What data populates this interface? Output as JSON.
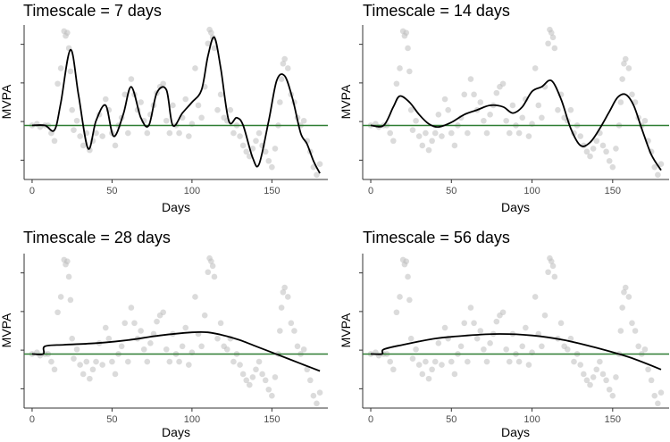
{
  "chart_data": [
    {
      "type": "line",
      "title": "Timescale = 7 days",
      "xlabel": "Days",
      "ylabel": "MVPA",
      "xlim": [
        -5,
        185
      ],
      "ylim": [
        0,
        1
      ],
      "x_ticks": [
        0,
        50,
        100,
        150
      ],
      "y_tick_count": 4,
      "reference_line_y": 0.35,
      "reference_color": "#2e7d32",
      "curve_color": "#000000",
      "point_color": "#bdbdbd",
      "curve": {
        "x": [
          0,
          8,
          14,
          18,
          24,
          29,
          35,
          40,
          46,
          51,
          57,
          62,
          68,
          73,
          78,
          84,
          88,
          94,
          100,
          106,
          110,
          114,
          118,
          123,
          128,
          132,
          138,
          142,
          148,
          153,
          158,
          163,
          168,
          172,
          176,
          180
        ],
        "y": [
          0.35,
          0.35,
          0.32,
          0.5,
          0.84,
          0.55,
          0.2,
          0.38,
          0.48,
          0.28,
          0.42,
          0.6,
          0.4,
          0.35,
          0.56,
          0.58,
          0.35,
          0.43,
          0.5,
          0.58,
          0.8,
          0.92,
          0.72,
          0.38,
          0.4,
          0.35,
          0.14,
          0.1,
          0.38,
          0.64,
          0.67,
          0.52,
          0.3,
          0.23,
          0.12,
          0.04
        ]
      }
    },
    {
      "type": "line",
      "title": "Timescale = 14 days",
      "xlabel": "Days",
      "ylabel": "MVPA",
      "xlim": [
        -5,
        185
      ],
      "ylim": [
        0,
        1
      ],
      "x_ticks": [
        0,
        50,
        100,
        150
      ],
      "y_tick_count": 4,
      "reference_line_y": 0.35,
      "reference_color": "#2e7d32",
      "curve_color": "#000000",
      "point_color": "#bdbdbd",
      "curve": {
        "x": [
          0,
          8,
          14,
          18,
          24,
          30,
          36,
          42,
          50,
          58,
          66,
          74,
          82,
          88,
          94,
          100,
          106,
          112,
          118,
          124,
          130,
          136,
          142,
          148,
          153,
          158,
          163,
          168,
          174,
          180
        ],
        "y": [
          0.35,
          0.35,
          0.47,
          0.54,
          0.5,
          0.42,
          0.36,
          0.34,
          0.37,
          0.42,
          0.45,
          0.48,
          0.47,
          0.43,
          0.47,
          0.57,
          0.6,
          0.64,
          0.52,
          0.33,
          0.22,
          0.24,
          0.33,
          0.44,
          0.53,
          0.55,
          0.48,
          0.33,
          0.16,
          0.06
        ]
      }
    },
    {
      "type": "line",
      "title": "Timescale = 28 days",
      "xlabel": "Days",
      "ylabel": "MVPA",
      "xlim": [
        -5,
        185
      ],
      "ylim": [
        0,
        1
      ],
      "x_ticks": [
        0,
        50,
        100,
        150
      ],
      "y_tick_count": 4,
      "reference_line_y": 0.35,
      "reference_color": "#2e7d32",
      "curve_color": "#000000",
      "point_color": "#bdbdbd",
      "curve": {
        "x": [
          0,
          7,
          8,
          20,
          40,
          60,
          80,
          100,
          110,
          120,
          130,
          140,
          150,
          160,
          170,
          180
        ],
        "y": [
          0.35,
          0.35,
          0.4,
          0.41,
          0.42,
          0.44,
          0.47,
          0.49,
          0.49,
          0.47,
          0.44,
          0.4,
          0.36,
          0.32,
          0.28,
          0.24
        ]
      }
    },
    {
      "type": "line",
      "title": "Timescale = 56 days",
      "xlabel": "Days",
      "ylabel": "MVPA",
      "xlim": [
        -5,
        185
      ],
      "ylim": [
        0,
        1
      ],
      "x_ticks": [
        0,
        50,
        100,
        150
      ],
      "y_tick_count": 4,
      "reference_line_y": 0.35,
      "reference_color": "#2e7d32",
      "curve_color": "#000000",
      "point_color": "#bdbdbd",
      "curve": {
        "x": [
          0,
          7,
          8,
          20,
          40,
          60,
          80,
          100,
          120,
          140,
          160,
          180
        ],
        "y": [
          0.35,
          0.35,
          0.38,
          0.41,
          0.45,
          0.47,
          0.48,
          0.47,
          0.44,
          0.39,
          0.33,
          0.25
        ]
      }
    }
  ],
  "observations": {
    "x": [
      0,
      3,
      5,
      8,
      10,
      12,
      14,
      16,
      18,
      20,
      21,
      22,
      23,
      24,
      25,
      26,
      28,
      30,
      32,
      34,
      36,
      38,
      40,
      42,
      44,
      46,
      48,
      50,
      52,
      54,
      56,
      58,
      60,
      62,
      64,
      66,
      68,
      70,
      72,
      74,
      76,
      78,
      80,
      82,
      84,
      86,
      88,
      90,
      92,
      94,
      96,
      98,
      100,
      102,
      104,
      106,
      108,
      110,
      111,
      112,
      113,
      114,
      116,
      118,
      120,
      122,
      124,
      126,
      128,
      130,
      132,
      134,
      136,
      138,
      140,
      142,
      144,
      146,
      148,
      150,
      152,
      154,
      155,
      156,
      157,
      158,
      160,
      162,
      164,
      166,
      168,
      170,
      172,
      174,
      176,
      178,
      180
    ],
    "y": [
      0.35,
      0.36,
      0.34,
      0.35,
      0.35,
      0.3,
      0.25,
      0.62,
      0.72,
      0.96,
      0.93,
      0.95,
      0.85,
      0.7,
      0.45,
      0.32,
      0.38,
      0.28,
      0.22,
      0.3,
      0.19,
      0.25,
      0.3,
      0.42,
      0.28,
      0.52,
      0.45,
      0.3,
      0.22,
      0.35,
      0.4,
      0.55,
      0.3,
      0.65,
      0.55,
      0.45,
      0.5,
      0.38,
      0.3,
      0.42,
      0.48,
      0.56,
      0.6,
      0.62,
      0.38,
      0.3,
      0.48,
      0.35,
      0.3,
      0.4,
      0.52,
      0.28,
      0.36,
      0.72,
      0.48,
      0.4,
      0.6,
      0.88,
      0.97,
      0.95,
      0.92,
      0.85,
      0.45,
      0.55,
      0.4,
      0.38,
      0.45,
      0.3,
      0.35,
      0.28,
      0.22,
      0.18,
      0.15,
      0.2,
      0.25,
      0.3,
      0.22,
      0.18,
      0.12,
      0.08,
      0.2,
      0.35,
      0.5,
      0.65,
      0.75,
      0.78,
      0.72,
      0.55,
      0.5,
      0.4,
      0.35,
      0.38,
      0.25,
      0.18,
      0.08,
      0.03,
      0.1
    ]
  }
}
